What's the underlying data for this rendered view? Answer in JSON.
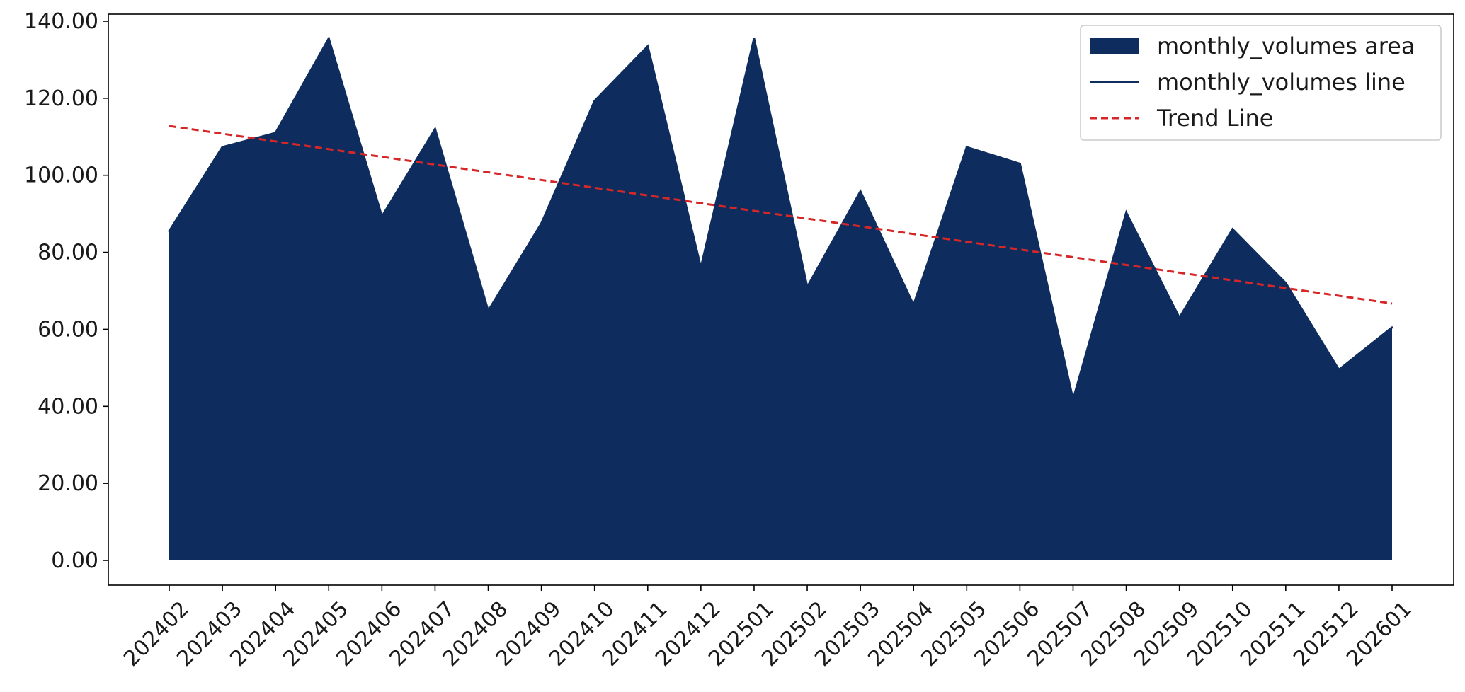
{
  "chart_data": {
    "type": "area",
    "title": "",
    "xlabel": "",
    "ylabel": "",
    "categories": [
      "202402",
      "202403",
      "202404",
      "202405",
      "202406",
      "202407",
      "202408",
      "202409",
      "202410",
      "202411",
      "202412",
      "202501",
      "202502",
      "202503",
      "202504",
      "202505",
      "202506",
      "202507",
      "202508",
      "202509",
      "202510",
      "202511",
      "202512",
      "202601"
    ],
    "series": [
      {
        "name": "monthly_volumes",
        "values": [
          85.5,
          107.3,
          111.0,
          135.5,
          89.3,
          112.0,
          64.8,
          87.5,
          119.3,
          133.5,
          76.0,
          135.5,
          71.0,
          95.8,
          66.3,
          107.3,
          103.0,
          41.8,
          90.3,
          63.0,
          86.0,
          72.0,
          49.5,
          60.5
        ],
        "color": "#0e2d5e"
      }
    ],
    "trend": {
      "name": "Trend Line",
      "start": 112.8,
      "end": 66.7,
      "color": "#d62728"
    },
    "legend": {
      "position": "top-right",
      "entries": [
        "monthly_volumes area",
        "monthly_volumes line",
        "Trend Line"
      ]
    },
    "ylim": [
      -6.8,
      142.5
    ],
    "yticks": [
      0,
      20,
      40,
      60,
      80,
      100,
      120,
      140
    ],
    "ytick_labels": [
      "0.00",
      "20.00",
      "40.00",
      "60.00",
      "80.00",
      "100.00",
      "120.00",
      "140.00"
    ],
    "grid": false
  }
}
